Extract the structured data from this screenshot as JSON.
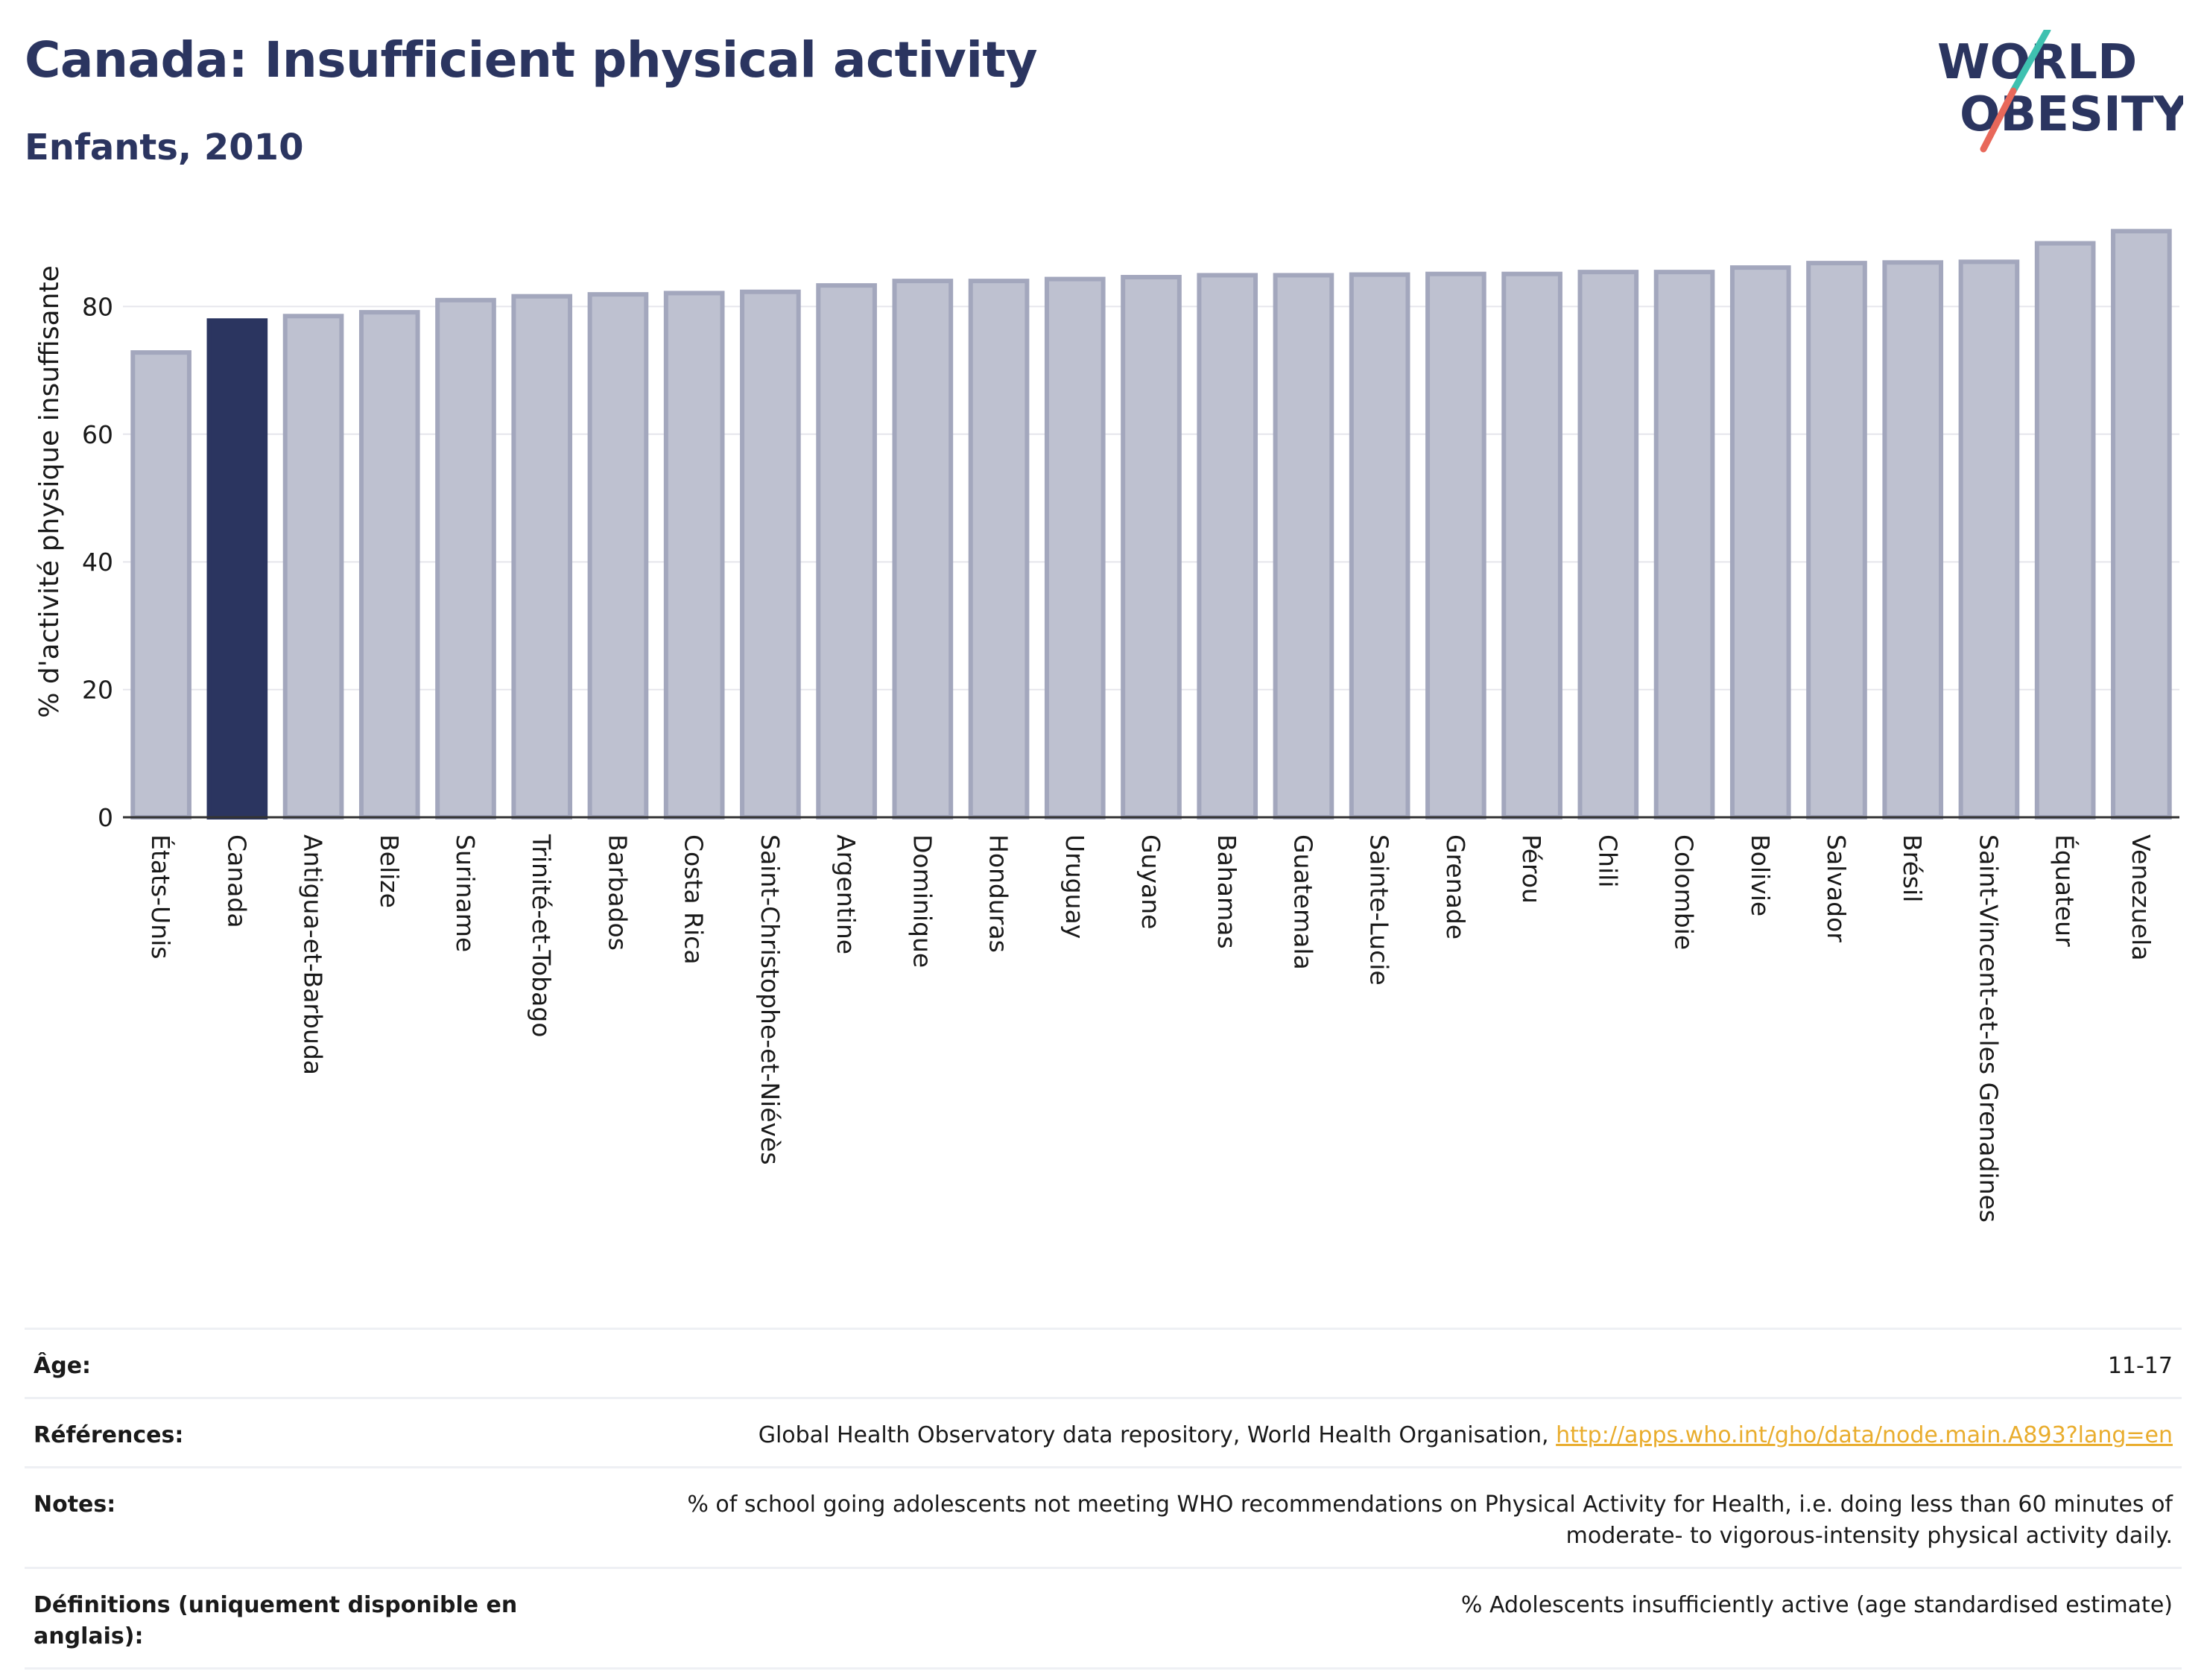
{
  "header": {
    "title": "Canada: Insufficient physical activity",
    "subtitle": "Enfants, 2010"
  },
  "logo": {
    "line1": "WORLD",
    "line2": "OBESITY",
    "slash_colors": [
      "#3fc1b0",
      "#e8685a"
    ]
  },
  "colors": {
    "highlight": "#2b3560",
    "bar_fill": "#bec1d0",
    "bar_stroke": "#a3a7bd",
    "axis": "#333333",
    "grid": "#e6e6ec"
  },
  "chart_data": {
    "type": "bar",
    "title": "Canada: Insufficient physical activity",
    "subtitle": "Enfants, 2010",
    "ylabel": "% d'activité physique insuffisante",
    "xlabel": "",
    "ylim": [
      0,
      93
    ],
    "yticks": [
      0,
      20,
      40,
      60,
      80
    ],
    "grid": true,
    "highlight": "Canada",
    "categories": [
      "États-Unis",
      "Canada",
      "Antigua-et-Barbuda",
      "Belize",
      "Suriname",
      "Trinité-et-Tobago",
      "Barbados",
      "Costa Rica",
      "Saint-Christophe-et-Niévès",
      "Argentine",
      "Dominique",
      "Honduras",
      "Uruguay",
      "Guyane",
      "Bahamas",
      "Guatemala",
      "Sainte-Lucie",
      "Grenade",
      "Pérou",
      "Chili",
      "Colombie",
      "Bolivie",
      "Salvador",
      "Brésil",
      "Saint-Vincent-et-les Grenadines",
      "Équateur",
      "Venezuela"
    ],
    "values": [
      72.8,
      77.8,
      78.5,
      79.1,
      81.0,
      81.6,
      81.9,
      82.1,
      82.3,
      83.3,
      84.0,
      84.0,
      84.3,
      84.6,
      84.9,
      84.9,
      85.0,
      85.1,
      85.1,
      85.4,
      85.4,
      86.1,
      86.8,
      86.9,
      87.0,
      89.9,
      91.8
    ]
  },
  "info": {
    "rows": [
      {
        "label": "Âge:",
        "value": "11-17",
        "link": ""
      },
      {
        "label": "Références:",
        "value": "Global Health Observatory data repository, World Health Organisation,",
        "link": "http://apps.who.int/gho/data/node.main.A893?lang=en"
      },
      {
        "label": "Notes:",
        "value": "% of school going adolescents not meeting WHO recommendations on Physical Activity for Health, i.e. doing less than 60 minutes of moderate- to vigorous-intensity physical activity daily.",
        "link": ""
      },
      {
        "label": "Définitions (uniquement disponible en anglais):",
        "value": "% Adolescents insufficiently active (age standardised estimate)",
        "link": ""
      }
    ]
  }
}
